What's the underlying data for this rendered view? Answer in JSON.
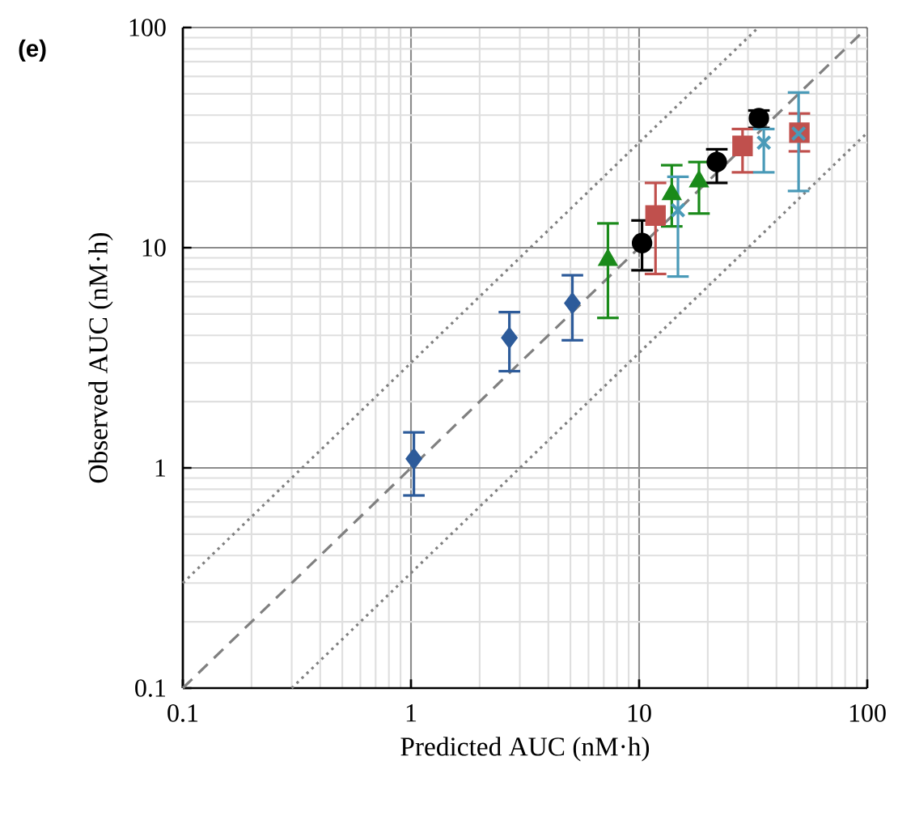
{
  "chart_data": {
    "type": "scatter",
    "xlabel": "Predicted AUC (nM·h)",
    "ylabel": "Observed AUC (nM·h)",
    "annotations": [
      "(e)"
    ],
    "log": "xy",
    "grid": true,
    "xlim": [
      0.1,
      100
    ],
    "ylim": [
      0.1,
      100
    ],
    "xticks": [
      0.1,
      1,
      10,
      100
    ],
    "yticks": [
      0.1,
      1,
      10,
      100
    ],
    "series": [
      {
        "type": "line",
        "color": "#808080",
        "line_style": "dashed",
        "marker": "none",
        "x": [
          0.1,
          100
        ],
        "values": [
          0.1,
          100
        ]
      },
      {
        "type": "line",
        "color": "#808080",
        "line_style": "dotted",
        "marker": "none",
        "x": [
          0.1,
          33.3
        ],
        "values": [
          0.3,
          100
        ]
      },
      {
        "type": "line",
        "color": "#808080",
        "line_style": "dotted",
        "marker": "none",
        "x": [
          0.3,
          100
        ],
        "values": [
          0.1,
          33.3
        ]
      },
      {
        "color": "#2d5b9a",
        "marker": "diamond",
        "x": [
          1.03,
          2.7,
          5.1
        ],
        "values": [
          1.1,
          3.9,
          5.6
        ],
        "errors": [
          [
            0.75,
            1.45
          ],
          [
            2.75,
            5.1
          ],
          [
            3.8,
            7.5
          ]
        ]
      },
      {
        "color": "#1a8a1a",
        "marker": "triangle",
        "x": [
          7.3,
          13.9,
          18.3
        ],
        "values": [
          8.8,
          17.5,
          20
        ],
        "errors": [
          [
            4.8,
            12.9
          ],
          [
            12.5,
            23.7
          ],
          [
            14.3,
            24.5
          ]
        ]
      },
      {
        "color": "#000000",
        "marker": "circle",
        "x": [
          10.3,
          21.9,
          33.5
        ],
        "values": [
          10.5,
          24.5,
          38.8
        ],
        "errors": [
          [
            7.9,
            13.3
          ],
          [
            19.7,
            28
          ],
          [
            35,
            42
          ]
        ]
      },
      {
        "color": "#c0504d",
        "marker": "square",
        "x": [
          11.8,
          28.4,
          50.4
        ],
        "values": [
          14,
          29,
          33.3
        ],
        "errors": [
          [
            7.6,
            19.7
          ],
          [
            22,
            34.6
          ],
          [
            27.4,
            40.7
          ]
        ]
      },
      {
        "color": "#4a9ab8",
        "marker": "cross",
        "x": [
          14.8,
          35.2,
          50
        ],
        "values": [
          14.8,
          30,
          33
        ],
        "errors": [
          [
            7.4,
            21
          ],
          [
            22,
            34.6
          ],
          [
            18.1,
            50.7
          ]
        ]
      }
    ]
  }
}
